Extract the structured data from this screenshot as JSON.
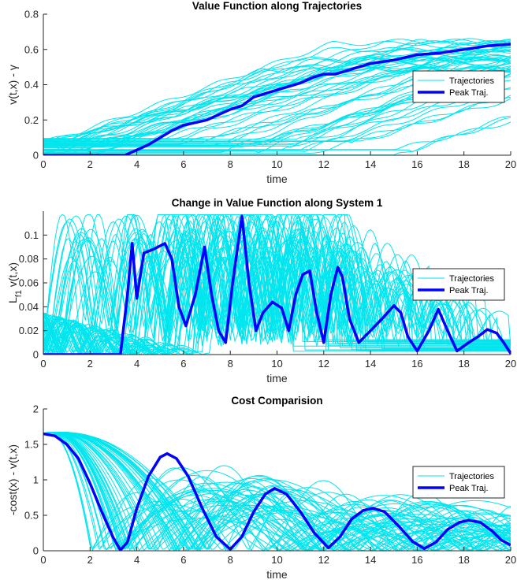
{
  "figure": {
    "colors": {
      "trajectory": "#00e5ee",
      "peak": "#0000ff",
      "axis": "#262626"
    }
  },
  "chart_data": [
    {
      "type": "line",
      "title": "Value Function along Trajectories",
      "xlabel": "time",
      "ylabel": "v(t,x) - γ",
      "xlim": [
        0,
        20
      ],
      "ylim": [
        0,
        0.8
      ],
      "xticks": [
        "0",
        "2",
        "4",
        "6",
        "8",
        "10",
        "12",
        "14",
        "16",
        "18",
        "20"
      ],
      "yticks": [
        "0",
        "0.2",
        "0.4",
        "0.6",
        "0.8"
      ],
      "legend": {
        "position": "right",
        "entries": [
          "Trajectories",
          "Peak Traj."
        ]
      },
      "grid": false,
      "series": [
        {
          "name": "Peak Traj.",
          "x": [
            0,
            1,
            2,
            3,
            3.5,
            4,
            4.5,
            5,
            5.5,
            6,
            7,
            7.5,
            8,
            8.5,
            9,
            10,
            11,
            11.5,
            12,
            12.5,
            13,
            14,
            15,
            16,
            17,
            18,
            19,
            20
          ],
          "y": [
            0,
            0,
            0,
            0,
            0,
            0.03,
            0.06,
            0.1,
            0.14,
            0.17,
            0.2,
            0.23,
            0.26,
            0.28,
            0.33,
            0.37,
            0.41,
            0.44,
            0.46,
            0.46,
            0.48,
            0.52,
            0.54,
            0.57,
            0.58,
            0.6,
            0.62,
            0.63
          ]
        }
      ],
      "trajectory_model": "value"
    },
    {
      "type": "line",
      "title": "Change in Value Function along System 1",
      "xlabel": "time",
      "ylabel": "L_f1 v(t,x)",
      "xlim": [
        0,
        20
      ],
      "ylim": [
        0,
        0.12
      ],
      "xticks": [
        "0",
        "2",
        "4",
        "6",
        "8",
        "10",
        "12",
        "14",
        "16",
        "18",
        "20"
      ],
      "yticks": [
        "0",
        "0.02",
        "0.04",
        "0.06",
        "0.08",
        "0.1"
      ],
      "legend": {
        "position": "right",
        "entries": [
          "Trajectories",
          "Peak Traj."
        ]
      },
      "grid": false,
      "series": [
        {
          "name": "Peak Traj.",
          "x": [
            0,
            3.3,
            3.6,
            3.8,
            4.0,
            4.3,
            4.7,
            5.2,
            5.5,
            5.8,
            6.1,
            6.5,
            6.9,
            7.2,
            7.5,
            7.8,
            8.1,
            8.5,
            8.8,
            9.1,
            9.4,
            9.8,
            10.2,
            10.5,
            10.8,
            11.1,
            11.4,
            11.7,
            12.0,
            12.3,
            12.6,
            12.8,
            13.1,
            13.5,
            14.0,
            14.5,
            15.0,
            15.3,
            15.6,
            16.0,
            16.5,
            16.9,
            17.3,
            17.7,
            18.2,
            18.6,
            19.0,
            19.4,
            19.7,
            20.0
          ],
          "y": [
            0,
            0,
            0.05,
            0.093,
            0.047,
            0.085,
            0.088,
            0.093,
            0.08,
            0.04,
            0.024,
            0.05,
            0.09,
            0.05,
            0.02,
            0.01,
            0.06,
            0.116,
            0.06,
            0.02,
            0.035,
            0.044,
            0.039,
            0.02,
            0.05,
            0.067,
            0.07,
            0.035,
            0.01,
            0.05,
            0.073,
            0.065,
            0.03,
            0.01,
            0.02,
            0.03,
            0.041,
            0.035,
            0.015,
            0.003,
            0.02,
            0.038,
            0.02,
            0.003,
            0.01,
            0.015,
            0.021,
            0.018,
            0.01,
            0.001
          ]
        }
      ],
      "trajectory_model": "rate"
    },
    {
      "type": "line",
      "title": "Cost Comparision",
      "xlabel": "time",
      "ylabel": "-cost(x) - v(t,x)",
      "xlim": [
        0,
        20
      ],
      "ylim": [
        0,
        2
      ],
      "xticks": [
        "0",
        "2",
        "4",
        "6",
        "8",
        "10",
        "12",
        "14",
        "16",
        "18",
        "20"
      ],
      "yticks": [
        "0",
        "0.5",
        "1",
        "1.5",
        "2"
      ],
      "legend": {
        "position": "right",
        "entries": [
          "Trajectories",
          "Peak Traj."
        ]
      },
      "grid": false,
      "series": [
        {
          "name": "Peak Traj.",
          "x": [
            0,
            0.5,
            1,
            1.5,
            2,
            2.5,
            3,
            3.3,
            3.6,
            4,
            4.5,
            5,
            5.3,
            5.7,
            6.2,
            6.8,
            7.4,
            8.0,
            8.5,
            9.0,
            9.5,
            9.9,
            10.4,
            11.0,
            11.6,
            12.2,
            12.7,
            13.2,
            13.7,
            14.1,
            14.6,
            15.2,
            15.8,
            16.3,
            16.8,
            17.3,
            17.8,
            18.2,
            18.7,
            19.2,
            19.6,
            20.0
          ],
          "y": [
            1.65,
            1.62,
            1.5,
            1.3,
            0.95,
            0.55,
            0.18,
            0.01,
            0.12,
            0.6,
            1.05,
            1.32,
            1.37,
            1.3,
            1.05,
            0.6,
            0.2,
            0.02,
            0.2,
            0.55,
            0.8,
            0.88,
            0.8,
            0.55,
            0.25,
            0.04,
            0.2,
            0.45,
            0.57,
            0.6,
            0.55,
            0.35,
            0.13,
            0.03,
            0.12,
            0.3,
            0.4,
            0.43,
            0.4,
            0.28,
            0.15,
            0.08
          ]
        }
      ],
      "trajectory_model": "cost"
    }
  ]
}
